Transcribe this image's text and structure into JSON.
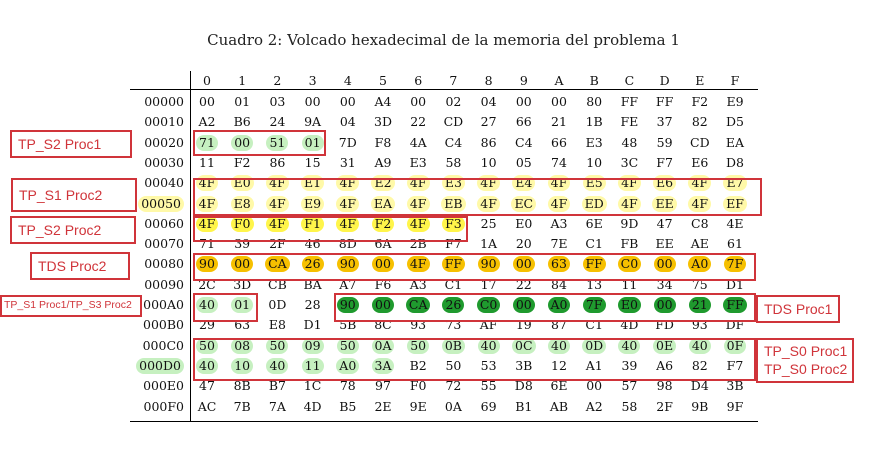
{
  "caption": "Cuadro 2: Volcado hexadecimal de la memoria del problema 1",
  "columns": [
    "0",
    "1",
    "2",
    "3",
    "4",
    "5",
    "6",
    "7",
    "8",
    "9",
    "A",
    "B",
    "C",
    "D",
    "E",
    "F"
  ],
  "rows": [
    {
      "addr": "00000",
      "bytes": [
        "00",
        "01",
        "03",
        "00",
        "00",
        "A4",
        "00",
        "02",
        "04",
        "00",
        "00",
        "80",
        "FF",
        "FF",
        "F2",
        "E9"
      ]
    },
    {
      "addr": "00010",
      "bytes": [
        "A2",
        "B6",
        "24",
        "9A",
        "04",
        "3D",
        "22",
        "CD",
        "27",
        "66",
        "21",
        "1B",
        "FE",
        "37",
        "82",
        "D5"
      ]
    },
    {
      "addr": "00020",
      "bytes": [
        "71",
        "00",
        "51",
        "01",
        "7D",
        "F8",
        "4A",
        "C4",
        "86",
        "C4",
        "66",
        "E3",
        "48",
        "59",
        "CD",
        "EA"
      ]
    },
    {
      "addr": "00030",
      "bytes": [
        "11",
        "F2",
        "86",
        "15",
        "31",
        "A9",
        "E3",
        "58",
        "10",
        "05",
        "74",
        "10",
        "3C",
        "F7",
        "E6",
        "D8"
      ]
    },
    {
      "addr": "00040",
      "bytes": [
        "4F",
        "E0",
        "4F",
        "E1",
        "4F",
        "E2",
        "4F",
        "E3",
        "4F",
        "E4",
        "4F",
        "E5",
        "4F",
        "E6",
        "4F",
        "E7"
      ]
    },
    {
      "addr": "00050",
      "bytes": [
        "4F",
        "E8",
        "4F",
        "E9",
        "4F",
        "EA",
        "4F",
        "EB",
        "4F",
        "EC",
        "4F",
        "ED",
        "4F",
        "EE",
        "4F",
        "EF"
      ]
    },
    {
      "addr": "00060",
      "bytes": [
        "4F",
        "F0",
        "4F",
        "F1",
        "4F",
        "F2",
        "4F",
        "F3",
        "25",
        "E0",
        "A3",
        "6E",
        "9D",
        "47",
        "C8",
        "4E"
      ]
    },
    {
      "addr": "00070",
      "bytes": [
        "71",
        "39",
        "2F",
        "46",
        "8D",
        "6A",
        "2B",
        "F7",
        "1A",
        "20",
        "7E",
        "C1",
        "FB",
        "EE",
        "AE",
        "61"
      ]
    },
    {
      "addr": "00080",
      "bytes": [
        "90",
        "00",
        "CA",
        "26",
        "90",
        "00",
        "4F",
        "FF",
        "90",
        "00",
        "63",
        "FF",
        "C0",
        "00",
        "A0",
        "7F"
      ]
    },
    {
      "addr": "00090",
      "bytes": [
        "2C",
        "3D",
        "CB",
        "BA",
        "A7",
        "F6",
        "A3",
        "C1",
        "17",
        "22",
        "84",
        "13",
        "11",
        "34",
        "75",
        "D1"
      ]
    },
    {
      "addr": "000A0",
      "bytes": [
        "40",
        "01",
        "0D",
        "28",
        "90",
        "00",
        "CA",
        "26",
        "C0",
        "00",
        "A0",
        "7F",
        "E0",
        "00",
        "21",
        "FF"
      ]
    },
    {
      "addr": "000B0",
      "bytes": [
        "29",
        "63",
        "E8",
        "D1",
        "5B",
        "8C",
        "93",
        "73",
        "AF",
        "19",
        "87",
        "C1",
        "4D",
        "FD",
        "93",
        "DF"
      ]
    },
    {
      "addr": "000C0",
      "bytes": [
        "50",
        "08",
        "50",
        "09",
        "50",
        "0A",
        "50",
        "0B",
        "40",
        "0C",
        "40",
        "0D",
        "40",
        "0E",
        "40",
        "0F"
      ]
    },
    {
      "addr": "000D0",
      "bytes": [
        "40",
        "10",
        "40",
        "11",
        "A0",
        "3A",
        "B2",
        "50",
        "53",
        "3B",
        "12",
        "A1",
        "39",
        "A6",
        "82",
        "F7"
      ]
    },
    {
      "addr": "000E0",
      "bytes": [
        "47",
        "8B",
        "B7",
        "1C",
        "78",
        "97",
        "F0",
        "72",
        "55",
        "D8",
        "6E",
        "00",
        "57",
        "98",
        "D4",
        "3B"
      ]
    },
    {
      "addr": "000F0",
      "bytes": [
        "AC",
        "7B",
        "7A",
        "4D",
        "B5",
        "2E",
        "9E",
        "0A",
        "69",
        "B1",
        "AB",
        "A2",
        "58",
        "2F",
        "9B",
        "9F"
      ]
    }
  ],
  "highlights": [
    {
      "row": 2,
      "cols": [
        0,
        1,
        2,
        3
      ],
      "color": "lg"
    },
    {
      "row": 4,
      "cols": [
        0,
        1,
        2,
        3,
        4,
        5,
        6,
        7,
        8,
        9,
        10,
        11,
        12,
        13,
        14,
        15
      ],
      "color": "ly"
    },
    {
      "row": 5,
      "cols": [
        0,
        1,
        2,
        3,
        4,
        5,
        6,
        7,
        8,
        9,
        10,
        11,
        12,
        13,
        14,
        15
      ],
      "color": "ly"
    },
    {
      "row": 6,
      "cols": [
        0,
        1,
        2,
        3,
        4,
        5,
        6,
        7
      ],
      "color": "y"
    },
    {
      "row": 8,
      "cols": [
        0,
        1,
        2,
        3,
        4,
        5,
        6,
        7,
        8,
        9,
        10,
        11,
        12,
        13,
        14,
        15
      ],
      "color": "o"
    },
    {
      "row": 10,
      "cols": [
        0,
        1
      ],
      "color": "lg"
    },
    {
      "row": 10,
      "cols": [
        4,
        5,
        6,
        7,
        8,
        9,
        10,
        11,
        12,
        13,
        14,
        15
      ],
      "color": "dg"
    },
    {
      "row": 12,
      "cols": [
        0,
        1,
        2,
        3,
        4,
        5,
        6,
        7,
        8,
        9,
        10,
        11,
        12,
        13,
        14,
        15
      ],
      "color": "lg"
    },
    {
      "row": 13,
      "cols": [
        0,
        1,
        2,
        3,
        4,
        5
      ],
      "color": "lg"
    }
  ],
  "highlight_colors": {
    "lg": "#c6f0c0",
    "y": "#fff54a",
    "ly": "#fff9a8",
    "o": "#f6c000",
    "dg": "#1f9a2e"
  },
  "highlighted_addresses": [
    5,
    13
  ],
  "annotations": {
    "tp_s2_proc1": "TP_S2 Proc1",
    "tp_s1_proc2": "TP_S1 Proc2",
    "tp_s2_proc2": "TP_S2 Proc2",
    "tds_proc2": "TDS Proc2",
    "tp_s1_s3_proc1": "TP_S1 Proc1/TP_S3 Proc2",
    "tds_proc1": "TDS Proc1",
    "tp_s0_proc1": "TP_S0 Proc1",
    "tp_s0_proc2": "TP_S0 Proc2"
  },
  "annotation_color": "#d0343a"
}
